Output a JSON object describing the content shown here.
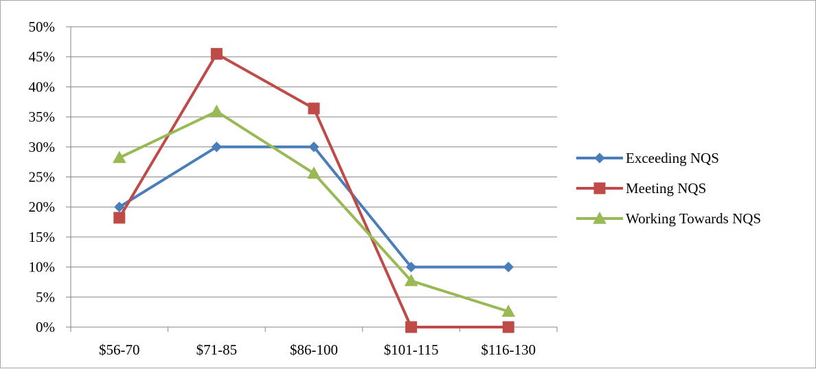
{
  "chart_data": {
    "type": "line",
    "title": "",
    "xlabel": "",
    "ylabel": "",
    "categories": [
      "$56-70",
      "$71-85",
      "$86-100",
      "$101-115",
      "$116-130"
    ],
    "ylim": [
      0,
      0.5
    ],
    "yticks": [
      0,
      0.05,
      0.1,
      0.15,
      0.2,
      0.25,
      0.3,
      0.35,
      0.4,
      0.45,
      0.5
    ],
    "ytick_labels": [
      "0%",
      "5%",
      "10%",
      "15%",
      "20%",
      "25%",
      "30%",
      "35%",
      "40%",
      "45%",
      "50%"
    ],
    "grid": true,
    "legend_position": "right",
    "series": [
      {
        "name": "Exceeding NQS",
        "color": "#4a7ebb",
        "marker": "diamond",
        "values": [
          0.2,
          0.3,
          0.3,
          0.1,
          0.1
        ]
      },
      {
        "name": "Meeting NQS",
        "color": "#be4b48",
        "marker": "square",
        "values": [
          0.182,
          0.455,
          0.364,
          0.0,
          0.0
        ]
      },
      {
        "name": "Working Towards NQS",
        "color": "#98b954",
        "marker": "triangle",
        "values": [
          0.282,
          0.359,
          0.256,
          0.077,
          0.026
        ]
      }
    ]
  }
}
